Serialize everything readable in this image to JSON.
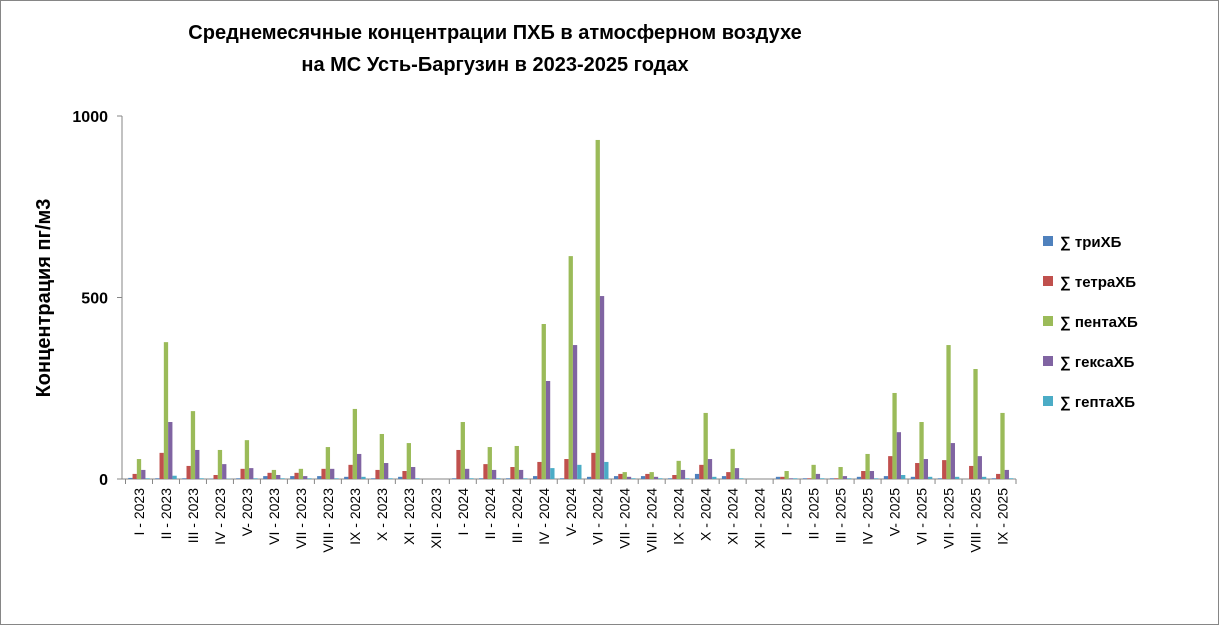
{
  "chart_data": {
    "type": "bar",
    "title": [
      "Среднемесячные концентрации ПХБ в атмосферном воздухе",
      "на МС  Усть-Баргузин в 2023-2025 годах"
    ],
    "xlabel": "",
    "ylabel": "Концентрация пг/м3",
    "ylim": [
      0,
      1000
    ],
    "yticks": [
      "0",
      "500",
      "1000"
    ],
    "grid": false,
    "legend_position": "right",
    "categories": [
      "I - 2023",
      "II - 2023",
      "III - 2023",
      "IV - 2023",
      "V- 2023",
      "VI - 2023",
      "VII - 2023",
      "VIII - 2023",
      "IX - 2023",
      "X - 2023",
      "XI - 2023",
      "XII - 2023",
      "I - 2024",
      "II - 2024",
      "III - 2024",
      "IV - 2024",
      "V- 2024",
      "VI - 2024",
      "VII - 2024",
      "VIII - 2024",
      "IX - 2024",
      "X - 2024",
      "XI - 2024",
      "XII - 2024",
      "I - 2025",
      "II - 2025",
      "III - 2025",
      "IV - 2025",
      "V- 2025",
      "VI - 2025",
      "VII - 2025",
      "VIII - 2025",
      "IX - 2025"
    ],
    "series": [
      {
        "name": "∑ триХБ",
        "color": "#4F81BD",
        "values": [
          3,
          2,
          2,
          1,
          2,
          8,
          8,
          8,
          6,
          2,
          6,
          0,
          2,
          2,
          2,
          8,
          2,
          6,
          8,
          8,
          2,
          14,
          8,
          0,
          6,
          2,
          2,
          6,
          8,
          6,
          2,
          0,
          2
        ]
      },
      {
        "name": "∑ тетраХБ",
        "color": "#C0504D",
        "values": [
          14,
          72,
          36,
          11,
          28,
          17,
          17,
          28,
          39,
          25,
          22,
          0,
          80,
          41,
          33,
          47,
          55,
          72,
          14,
          14,
          11,
          39,
          19,
          0,
          6,
          2,
          2,
          22,
          63,
          44,
          52,
          36,
          14
        ]
      },
      {
        "name": "∑ пентаХБ",
        "color": "#9BBB59",
        "values": [
          55,
          377,
          187,
          80,
          107,
          25,
          28,
          88,
          193,
          124,
          99,
          0,
          157,
          88,
          91,
          427,
          614,
          934,
          19,
          19,
          50,
          182,
          83,
          0,
          22,
          39,
          33,
          69,
          237,
          157,
          369,
          303,
          182
        ]
      },
      {
        "name": "∑ гексаХБ",
        "color": "#8064A2",
        "values": [
          25,
          157,
          80,
          41,
          30,
          11,
          8,
          28,
          69,
          44,
          33,
          0,
          28,
          25,
          25,
          270,
          369,
          504,
          6,
          6,
          25,
          55,
          30,
          0,
          2,
          14,
          8,
          22,
          129,
          55,
          99,
          63,
          25
        ]
      },
      {
        "name": "∑ гептаХБ",
        "color": "#4BACC6",
        "values": [
          2,
          9,
          2,
          1,
          2,
          2,
          2,
          2,
          6,
          2,
          2,
          0,
          2,
          2,
          2,
          30,
          39,
          47,
          2,
          2,
          2,
          6,
          2,
          0,
          2,
          2,
          2,
          2,
          11,
          6,
          6,
          6,
          2
        ]
      }
    ]
  }
}
